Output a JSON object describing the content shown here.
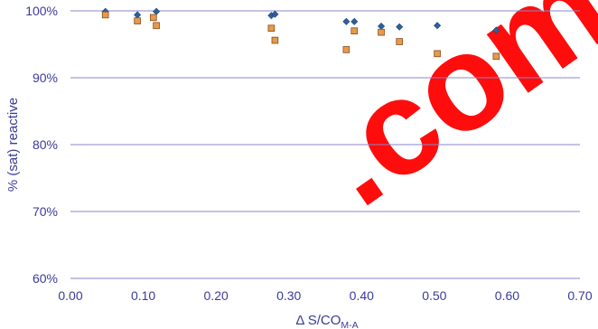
{
  "chart_data": {
    "type": "scatter",
    "title": "",
    "xlabel": "Δ S/CO",
    "xlabel_sub": "M-A",
    "ylabel": "% (sat) reactive",
    "xlim": [
      0,
      0.7
    ],
    "ylim": [
      60,
      100
    ],
    "x_ticks": [
      "0.00",
      "0.10",
      "0.20",
      "0.30",
      "0.40",
      "0.50",
      "0.60",
      "0.70"
    ],
    "y_ticks": [
      "60%",
      "70%",
      "80%",
      "90%",
      "100%"
    ],
    "grid": true,
    "legend": "none",
    "series": [
      {
        "marker": "diamond",
        "color": "#2e5f9e",
        "points": [
          [
            0.048,
            99.9
          ],
          [
            0.092,
            99.4
          ],
          [
            0.118,
            99.9
          ],
          [
            0.276,
            99.3
          ],
          [
            0.281,
            99.5
          ],
          [
            0.379,
            98.4
          ],
          [
            0.39,
            98.4
          ],
          [
            0.427,
            97.7
          ],
          [
            0.452,
            97.6
          ],
          [
            0.504,
            97.8
          ],
          [
            0.585,
            97.1
          ]
        ]
      },
      {
        "marker": "square",
        "color": "#e39b4f",
        "points": [
          [
            0.048,
            99.4
          ],
          [
            0.092,
            98.5
          ],
          [
            0.114,
            99.0
          ],
          [
            0.118,
            97.8
          ],
          [
            0.276,
            97.4
          ],
          [
            0.281,
            95.6
          ],
          [
            0.379,
            94.2
          ],
          [
            0.39,
            97.0
          ],
          [
            0.427,
            96.8
          ],
          [
            0.452,
            95.4
          ],
          [
            0.504,
            93.6
          ],
          [
            0.585,
            93.2
          ]
        ]
      }
    ]
  }
}
